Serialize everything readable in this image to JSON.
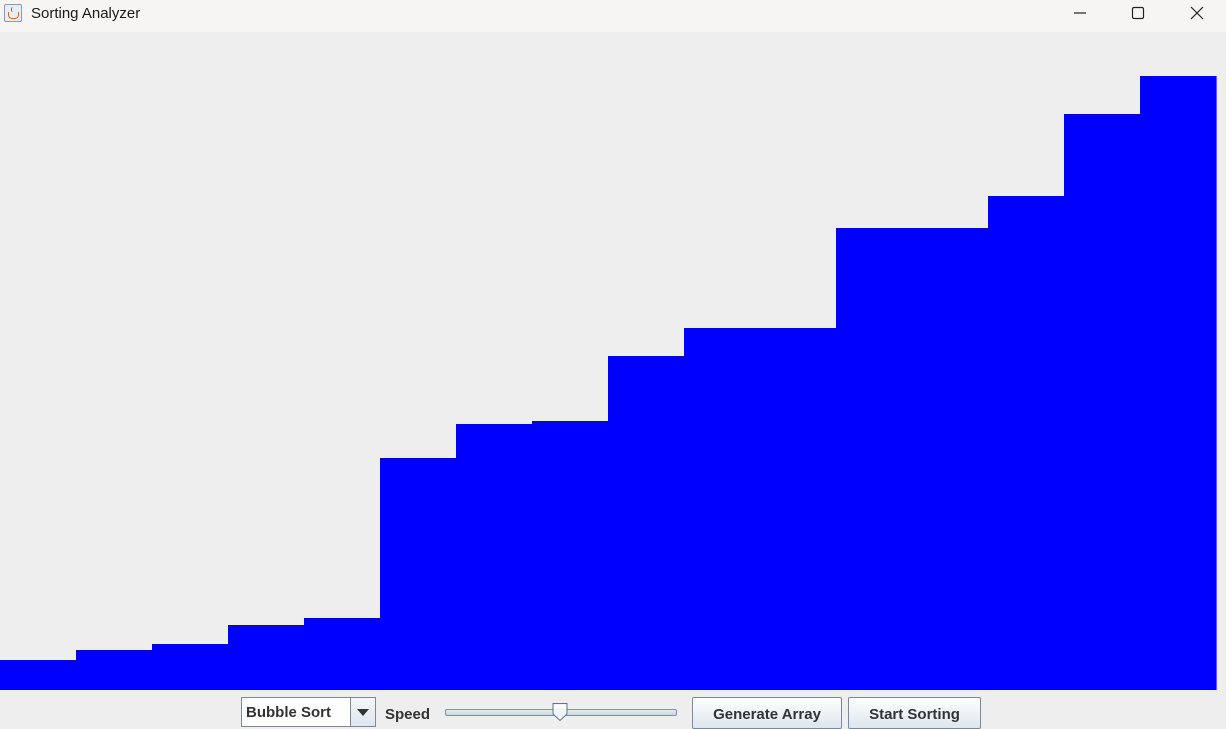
{
  "window": {
    "title": "Sorting Analyzer",
    "icon": "java-cup-icon"
  },
  "visualizer": {
    "bar_color": "#0000FF",
    "max_value": 658,
    "values": [
      30,
      40,
      46,
      65,
      72,
      232,
      266,
      269,
      334,
      362,
      362,
      462,
      462,
      494,
      576,
      614
    ]
  },
  "controls": {
    "algorithm": "Bubble Sort",
    "speed_label": "Speed",
    "speed_value": 0.5,
    "generate_label": "Generate Array",
    "start_label": "Start Sorting"
  }
}
